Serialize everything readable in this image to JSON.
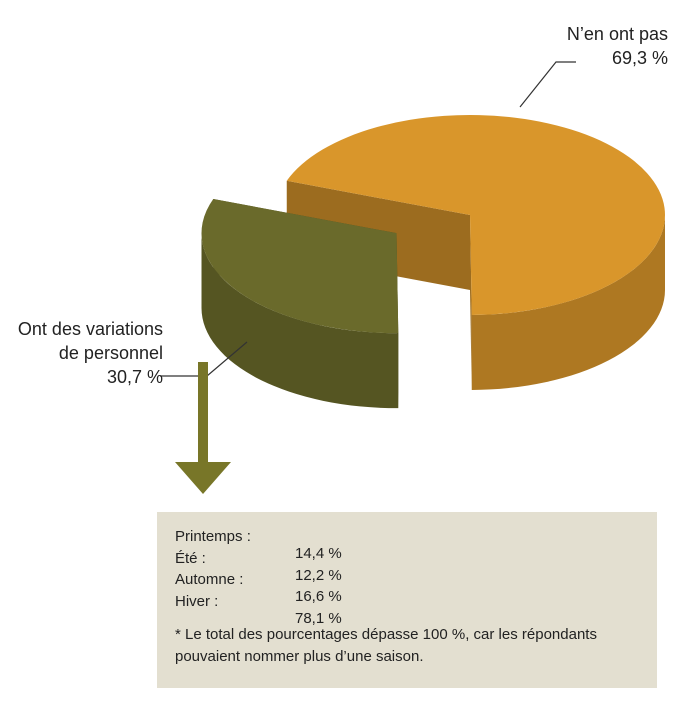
{
  "chart_data": {
    "type": "pie",
    "categories": [
      "N’en ont pas",
      "Ont des variations de personnel"
    ],
    "values": [
      69.3,
      30.7
    ],
    "value_labels": [
      "69,3 %",
      "30,7 %"
    ],
    "colors": [
      "#d9962b",
      "#6a6a2b"
    ],
    "breakdown": {
      "categories": [
        "Printemps :",
        "Été :",
        "Automne :",
        "Hiver :"
      ],
      "values": [
        14.4,
        12.2,
        16.6,
        78.1
      ],
      "value_labels": [
        "14,4 %",
        "12,2 %",
        "16,6 %",
        "78,1 %"
      ],
      "note": "*  Le total des pourcentages dépasse 100 %, car les répondants pouvaient nommer plus d’une saison."
    }
  }
}
